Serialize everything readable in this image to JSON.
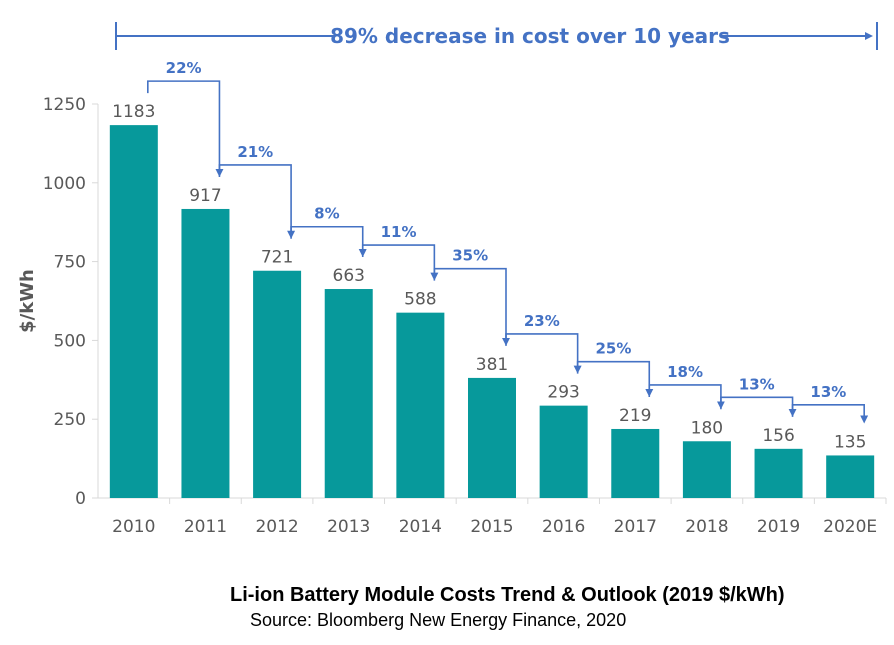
{
  "chart_data": {
    "type": "bar",
    "title": "Li-ion Battery Module Costs Trend & Outlook (2019 $/kWh)",
    "subtitle": "Source: Bloomberg New Energy Finance, 2020",
    "headline": "89% decrease in cost over 10 years",
    "ylabel": "$/kWh",
    "xlabel": "",
    "ylim": [
      0,
      1250
    ],
    "yticks": [
      0,
      250,
      500,
      750,
      1000,
      1250
    ],
    "categories": [
      "2010",
      "2011",
      "2012",
      "2013",
      "2014",
      "2015",
      "2016",
      "2017",
      "2018",
      "2019",
      "2020E"
    ],
    "values": [
      1183,
      917,
      721,
      663,
      588,
      381,
      293,
      219,
      180,
      156,
      135
    ],
    "data_labels": [
      "1183",
      "917",
      "721",
      "663",
      "588",
      "381",
      "293",
      "219",
      "180",
      "156",
      "135"
    ],
    "decreases": [
      "22%",
      "21%",
      "8%",
      "11%",
      "35%",
      "23%",
      "25%",
      "18%",
      "13%",
      "13%"
    ],
    "grid": false,
    "legend": "none",
    "colors": {
      "bar": "#07999b",
      "annotation": "#4472c4",
      "text": "#595959",
      "axis": "#d9d9d9"
    }
  }
}
